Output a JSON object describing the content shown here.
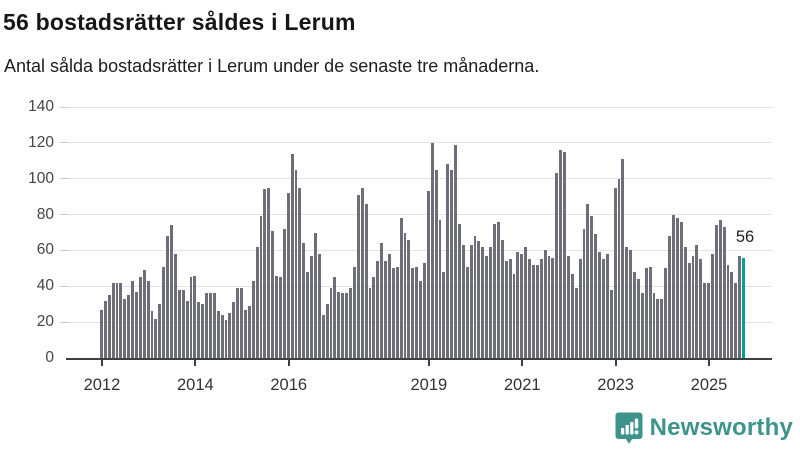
{
  "header": {
    "title": "56 bostadsrätter såldes i Lerum",
    "subtitle": "Antal sålda bostadsrätter i Lerum under de senaste tre månaderna."
  },
  "chart_data": {
    "type": "bar",
    "title": "56 bostadsrätter såldes i Lerum",
    "xlabel": "",
    "ylabel": "",
    "frequency": "monthly",
    "x_range": [
      "2012-01",
      "2025-10"
    ],
    "ylim": [
      0,
      140
    ],
    "y_ticks": [
      0,
      20,
      40,
      60,
      80,
      100,
      120,
      140
    ],
    "x_ticks": [
      {
        "index": 0,
        "label": "2012"
      },
      {
        "index": 24,
        "label": "2014"
      },
      {
        "index": 48,
        "label": "2016"
      },
      {
        "index": 84,
        "label": "2019"
      },
      {
        "index": 108,
        "label": "2021"
      },
      {
        "index": 132,
        "label": "2023"
      },
      {
        "index": 156,
        "label": "2025"
      }
    ],
    "grid": true,
    "legend": false,
    "values": [
      27,
      32,
      35,
      42,
      42,
      42,
      33,
      35,
      43,
      37,
      45,
      49,
      43,
      26,
      22,
      30,
      51,
      68,
      74,
      58,
      38,
      38,
      32,
      45,
      46,
      31,
      30,
      36,
      36,
      36,
      26,
      24,
      21,
      25,
      31,
      39,
      39,
      27,
      29,
      43,
      62,
      79,
      94,
      95,
      71,
      46,
      45,
      72,
      92,
      114,
      105,
      95,
      64,
      48,
      57,
      70,
      58,
      24,
      30,
      39,
      45,
      37,
      36,
      36,
      39,
      51,
      91,
      95,
      86,
      39,
      45,
      54,
      64,
      54,
      58,
      50,
      51,
      78,
      70,
      66,
      50,
      51,
      43,
      53,
      93,
      120,
      105,
      77,
      48,
      108,
      105,
      119,
      75,
      63,
      51,
      63,
      68,
      65,
      62,
      57,
      62,
      75,
      76,
      66,
      54,
      55,
      47,
      59,
      58,
      62,
      55,
      52,
      52,
      55,
      60,
      57,
      56,
      103,
      116,
      115,
      57,
      47,
      39,
      55,
      72,
      86,
      79,
      69,
      59,
      55,
      58,
      38,
      95,
      100,
      111,
      62,
      60,
      48,
      44,
      36,
      50,
      51,
      36,
      33,
      33,
      50,
      68,
      80,
      78,
      76,
      62,
      53,
      57,
      63,
      55,
      42,
      42,
      58,
      74,
      77,
      73,
      52,
      48,
      42,
      57,
      56
    ],
    "highlight": {
      "index": 165,
      "value": 56,
      "label": "56"
    }
  },
  "colors": {
    "bar": "#6e6e78",
    "highlight": "#089e9e",
    "gridline": "#e2e2e2",
    "axis": "#3f3f3f",
    "brand": "#3e948c"
  },
  "branding": {
    "name": "Newsworthy",
    "icon": "newsworthy-chart-bubble-icon"
  }
}
